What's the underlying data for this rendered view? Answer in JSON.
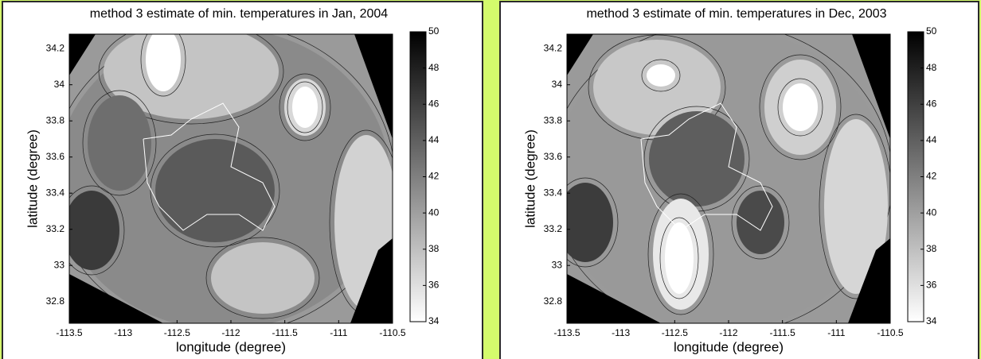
{
  "chart_data": [
    {
      "type": "contour",
      "title": "method 3 estimate of min. temperatures in Jan, 2004",
      "xlabel": "longitude (degree)",
      "ylabel": "latitude (degree)",
      "xlim": [
        -113.5,
        -110.5
      ],
      "ylim": [
        32.68,
        34.28
      ],
      "xticks": [
        -113.5,
        -113,
        -112.5,
        -112,
        -111.5,
        -111,
        -110.5
      ],
      "yticks": [
        32.8,
        33,
        33.2,
        33.4,
        33.6,
        33.8,
        34,
        34.2
      ],
      "colormap": "gray",
      "clim": [
        34,
        50
      ],
      "cticks": [
        34,
        36,
        38,
        40,
        42,
        44,
        46,
        48,
        50
      ]
    },
    {
      "type": "contour",
      "title": "method 3 estimate of min. temperatures in Dec, 2003",
      "xlabel": "longitude (degree)",
      "ylabel": "latitude (degree)",
      "xlim": [
        -113.5,
        -110.5
      ],
      "ylim": [
        32.68,
        34.28
      ],
      "xticks": [
        -113.5,
        -113,
        -112.5,
        -112,
        -111.5,
        -111,
        -110.5
      ],
      "yticks": [
        32.8,
        33,
        33.2,
        33.4,
        33.6,
        33.8,
        34,
        34.2
      ],
      "colormap": "gray",
      "clim": [
        34,
        50
      ],
      "cticks": [
        34,
        36,
        38,
        40,
        42,
        44,
        46,
        48,
        50
      ]
    }
  ]
}
